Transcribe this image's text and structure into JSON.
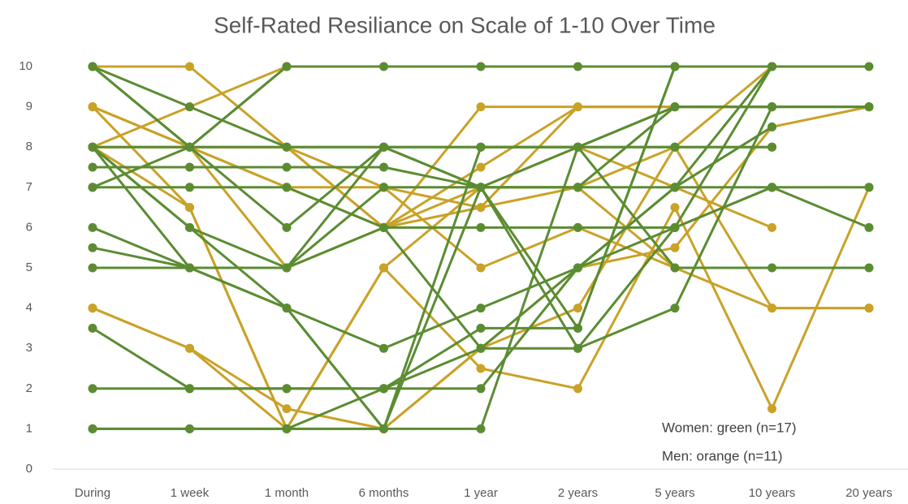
{
  "chart_data": {
    "type": "line",
    "title": "Self-Rated Resiliance on Scale of 1-10 Over Time",
    "annotations": [
      "Women: green (n=17)",
      "Men: orange (n=11)"
    ],
    "categories": [
      "During",
      "1 week",
      "1 month",
      "6 months",
      "1 year",
      "2 years",
      "5 years",
      "10 years",
      "20 years"
    ],
    "ylim": [
      0,
      10.4
    ],
    "yticks": [
      0,
      1,
      2,
      3,
      4,
      5,
      6,
      7,
      8,
      9,
      10
    ],
    "grid": false,
    "series": [
      {
        "color": "#c9a227",
        "values": [
          10,
          10,
          8,
          6,
          9,
          9,
          9,
          null,
          null
        ]
      },
      {
        "color": "#c9a227",
        "values": [
          9,
          8,
          8,
          7,
          5,
          6,
          5,
          4,
          4
        ]
      },
      {
        "color": "#c9a227",
        "values": [
          9,
          6.5,
          1,
          5,
          2.5,
          2,
          6.5,
          1.5,
          7
        ]
      },
      {
        "color": "#c9a227",
        "values": [
          8,
          9,
          10,
          null,
          null,
          null,
          null,
          null,
          null
        ]
      },
      {
        "color": "#c9a227",
        "values": [
          4,
          3,
          1.5,
          1,
          3,
          4,
          8,
          10,
          null
        ]
      },
      {
        "color": "#c9a227",
        "values": [
          8,
          8,
          5,
          6,
          6.5,
          7,
          5,
          null,
          null
        ]
      },
      {
        "color": "#c9a227",
        "values": [
          9,
          8,
          7,
          6,
          7.5,
          9,
          9,
          9,
          null
        ]
      },
      {
        "color": "#c9a227",
        "values": [
          8,
          8,
          8,
          6,
          7,
          8,
          7,
          6,
          null
        ]
      },
      {
        "color": "#c9a227",
        "values": [
          4,
          3,
          1,
          1,
          3,
          5,
          5.5,
          8.5,
          9
        ]
      },
      {
        "color": "#c9a227",
        "values": [
          8,
          6.5,
          1,
          5,
          7,
          7,
          8,
          4,
          4
        ]
      },
      {
        "color": "#c9a227",
        "values": [
          9,
          8,
          7,
          7,
          6.5,
          9,
          9,
          9,
          null
        ]
      },
      {
        "color": "#5b8c32",
        "values": [
          10,
          9,
          8,
          8,
          8,
          8,
          9,
          9,
          9
        ]
      },
      {
        "color": "#5b8c32",
        "values": [
          10,
          8,
          10,
          10,
          10,
          10,
          10,
          10,
          10
        ]
      },
      {
        "color": "#5b8c32",
        "values": [
          8,
          8,
          8,
          8,
          8,
          8,
          8,
          8,
          null
        ]
      },
      {
        "color": "#5b8c32",
        "values": [
          8,
          6,
          4,
          1,
          7,
          7,
          7,
          7,
          7
        ]
      },
      {
        "color": "#5b8c32",
        "values": [
          7.5,
          7.5,
          7.5,
          7.5,
          7,
          7,
          9,
          9,
          9
        ]
      },
      {
        "color": "#5b8c32",
        "values": [
          7,
          7,
          7,
          6,
          6,
          6,
          6,
          7,
          6
        ]
      },
      {
        "color": "#5b8c32",
        "values": [
          7,
          8,
          10,
          null,
          null,
          null,
          null,
          null,
          null
        ]
      },
      {
        "color": "#5b8c32",
        "values": [
          6,
          5,
          4,
          3,
          4,
          5,
          6,
          10,
          null
        ]
      },
      {
        "color": "#5b8c32",
        "values": [
          5.5,
          5,
          5,
          8,
          7,
          3.5,
          10,
          null,
          null
        ]
      },
      {
        "color": "#5b8c32",
        "values": [
          5,
          5,
          5,
          7,
          7,
          8,
          5,
          5,
          5
        ]
      },
      {
        "color": "#5b8c32",
        "values": [
          3.5,
          2,
          2,
          2,
          3,
          5,
          7,
          10,
          null
        ]
      },
      {
        "color": "#5b8c32",
        "values": [
          2,
          2,
          2,
          2,
          2,
          5,
          7,
          8.5,
          null
        ]
      },
      {
        "color": "#5b8c32",
        "values": [
          1,
          1,
          1,
          2,
          3.5,
          3.5,
          10,
          10,
          null
        ]
      },
      {
        "color": "#5b8c32",
        "values": [
          1,
          1,
          1,
          1,
          1,
          8,
          9,
          9,
          9
        ]
      },
      {
        "color": "#5b8c32",
        "values": [
          8,
          5,
          4,
          1,
          8,
          8,
          8,
          8,
          null
        ]
      },
      {
        "color": "#5b8c32",
        "values": [
          10,
          8,
          6,
          8,
          7,
          3,
          4,
          9,
          null
        ]
      },
      {
        "color": "#5b8c32",
        "values": [
          8,
          6,
          5,
          6,
          3,
          3,
          6,
          7,
          null
        ]
      }
    ]
  }
}
